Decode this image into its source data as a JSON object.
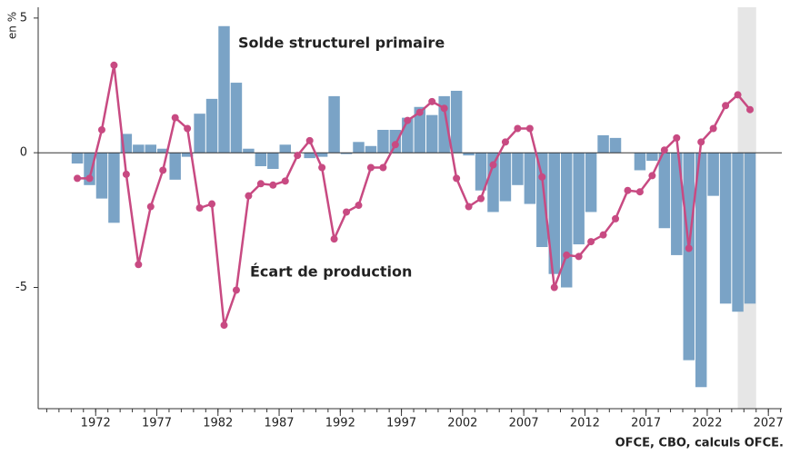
{
  "chart_data": {
    "type": "bar_line",
    "y_label": "en %",
    "source": "OFCE, CBO, calculs OFCE.",
    "x": [
      1970,
      1971,
      1972,
      1973,
      1974,
      1975,
      1976,
      1977,
      1978,
      1979,
      1980,
      1981,
      1982,
      1983,
      1984,
      1985,
      1986,
      1987,
      1988,
      1989,
      1990,
      1991,
      1992,
      1993,
      1994,
      1995,
      1996,
      1997,
      1998,
      1999,
      2000,
      2001,
      2002,
      2003,
      2004,
      2005,
      2006,
      2007,
      2008,
      2009,
      2010,
      2011,
      2012,
      2013,
      2014,
      2015,
      2016,
      2017,
      2018,
      2019,
      2020,
      2021,
      2022,
      2023,
      2024,
      2025
    ],
    "series": [
      {
        "name": "Solde structurel primaire",
        "color": "#7aa3c6",
        "kind": "bar",
        "values": [
          -0.4,
          -1.2,
          -1.7,
          -2.6,
          0.7,
          0.3,
          0.3,
          0.15,
          -1.0,
          -0.15,
          1.45,
          2.0,
          4.7,
          2.6,
          0.15,
          -0.5,
          -0.6,
          0.3,
          0.0,
          -0.2,
          -0.15,
          2.1,
          -0.05,
          0.4,
          0.25,
          0.85,
          0.85,
          1.3,
          1.7,
          1.4,
          2.1,
          2.3,
          -0.1,
          -1.4,
          -2.2,
          -1.8,
          -1.2,
          -1.9,
          -3.5,
          -4.5,
          -5.0,
          -3.4,
          -2.2,
          0.65,
          0.55,
          0.0,
          -0.65,
          -0.3,
          -2.8,
          -3.8,
          -7.7,
          -8.7,
          -1.6,
          -5.6,
          -5.9,
          -5.6
        ]
      },
      {
        "name": "Écart de production",
        "color": "#c84a82",
        "kind": "line",
        "values": [
          -0.95,
          -0.95,
          0.85,
          3.25,
          -0.8,
          -4.15,
          -2.0,
          -0.65,
          1.3,
          0.9,
          -2.05,
          -1.9,
          -6.4,
          -5.1,
          -1.6,
          -1.15,
          -1.2,
          -1.05,
          -0.1,
          0.45,
          -0.55,
          -3.2,
          -2.2,
          -1.95,
          -0.55,
          -0.55,
          0.3,
          1.2,
          1.5,
          1.9,
          1.65,
          -0.95,
          -2.0,
          -1.7,
          -0.45,
          0.4,
          0.9,
          0.9,
          -0.9,
          -5.0,
          -3.8,
          -3.85,
          -3.3,
          -3.05,
          -2.45,
          -1.4,
          -1.45,
          -0.85,
          0.1,
          0.55,
          -3.55,
          0.4,
          0.9,
          1.75,
          2.15,
          1.6
        ]
      }
    ],
    "highlight_x": [
      2024.5,
      2026
    ],
    "xlim": [
      1967.3,
      2028.1
    ],
    "xticks": [
      1972,
      1977,
      1982,
      1987,
      1992,
      1997,
      2002,
      2007,
      2012,
      2017,
      2022,
      2027
    ],
    "ylim": [
      -9.5,
      5.4
    ],
    "yticks": [
      5,
      0,
      -5
    ]
  }
}
